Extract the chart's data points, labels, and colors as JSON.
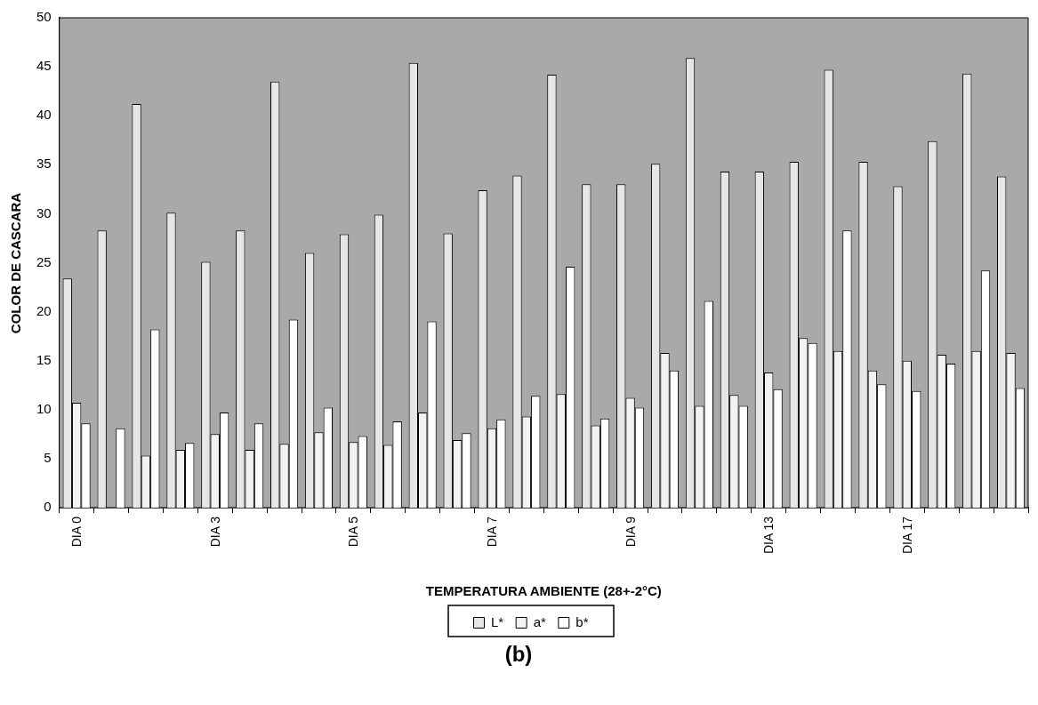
{
  "chart_data": {
    "type": "bar",
    "xlabel": "TEMPERATURA AMBIENTE (28+-2°C)",
    "ylabel": "COLOR DE CASCARA",
    "annotations": [
      "(b)"
    ],
    "categories": [
      "DIA 0",
      null,
      null,
      null,
      "DIA 3",
      null,
      null,
      null,
      "DIA 5",
      null,
      null,
      null,
      "DIA 7",
      null,
      null,
      null,
      "DIA 9",
      null,
      null,
      null,
      "DIA 13",
      null,
      null,
      null,
      "DIA 17",
      null,
      null,
      null
    ],
    "series": [
      {
        "name": "L*",
        "color": "#e6e6e6",
        "values": [
          23.4,
          28.3,
          41.2,
          30.1,
          25.1,
          28.3,
          43.5,
          26.0,
          27.9,
          29.9,
          45.4,
          28.0,
          32.4,
          33.9,
          44.2,
          33.0,
          33.0,
          35.1,
          45.9,
          34.3,
          34.3,
          35.3,
          44.7,
          35.3,
          32.8,
          37.4,
          44.3,
          33.8
        ]
      },
      {
        "name": "a*",
        "color": "#f2f2f2",
        "values": [
          10.7,
          null,
          5.3,
          5.9,
          7.5,
          5.9,
          6.5,
          7.7,
          6.7,
          6.4,
          9.7,
          6.9,
          8.1,
          9.3,
          11.6,
          8.4,
          11.2,
          15.8,
          10.4,
          11.5,
          13.8,
          17.3,
          16.0,
          14.0,
          15.0,
          15.6,
          16.0,
          15.8
        ]
      },
      {
        "name": "b*",
        "color": "#ffffff",
        "values": [
          8.6,
          8.1,
          18.2,
          6.6,
          9.7,
          8.6,
          19.2,
          10.2,
          7.3,
          8.8,
          19.0,
          7.6,
          9.0,
          11.4,
          24.6,
          9.1,
          10.2,
          14.0,
          21.1,
          10.4,
          12.1,
          16.8,
          28.3,
          12.6,
          11.9,
          14.7,
          24.2,
          12.2
        ]
      }
    ],
    "ylim": [
      0,
      50
    ],
    "yticks": [
      0,
      5,
      10,
      15,
      20,
      25,
      30,
      35,
      40,
      45,
      50
    ],
    "legend": "bottom"
  }
}
